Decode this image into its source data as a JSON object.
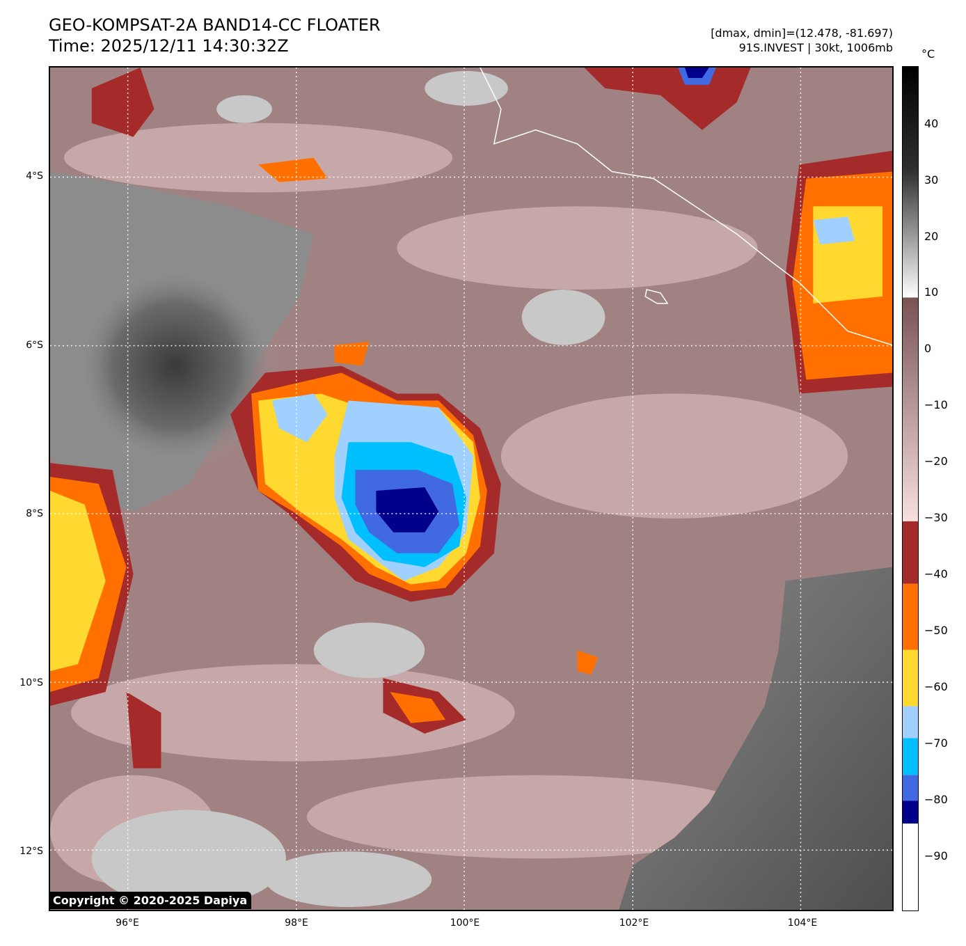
{
  "title": {
    "line1": "GEO-KOMPSAT-2A BAND14-CC FLOATER",
    "line2": "Time: 2025/12/11 14:30:32Z"
  },
  "info": {
    "range": "[dmax, dmin]=(12.478, -81.697)",
    "storm": "91S.INVEST | 30kt, 1006mb"
  },
  "colorbar": {
    "unit": "°C",
    "ticks": [
      "40",
      "30",
      "20",
      "10",
      "0",
      "−10",
      "−20",
      "−30",
      "−40",
      "−50",
      "−60",
      "−70",
      "−80",
      "−90"
    ]
  },
  "axes": {
    "lat_labels": [
      "4°S",
      "6°S",
      "8°S",
      "10°S",
      "12°S"
    ],
    "lon_labels": [
      "96°E",
      "98°E",
      "100°E",
      "102°E",
      "104°E"
    ]
  },
  "copyright": "Copyright © 2020-2025 Dapiya",
  "colors": {
    "bg": "#9c7a7a",
    "pink": "#f0d4d4",
    "dark_red": "#a52a2a",
    "orange": "#ff7000",
    "yellow": "#ffd830",
    "light_blue": "#a0d0ff",
    "cyan": "#00bfff",
    "royal_blue": "#4169e1",
    "navy": "#00008b",
    "gray": "#808080",
    "land_gray": "#5c5c5c"
  }
}
